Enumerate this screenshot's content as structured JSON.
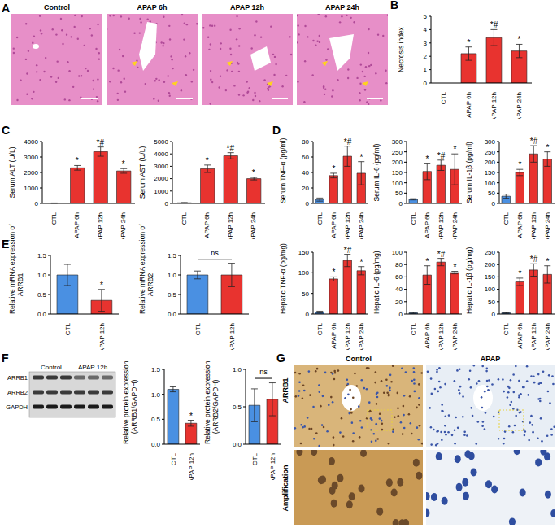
{
  "histology": {
    "panel": "A",
    "labels": [
      "Control",
      "APAP 6h",
      "APAP 12h",
      "APAP 24h"
    ]
  },
  "blot": {
    "panel": "F",
    "groups": [
      "Control",
      "APAP 12h"
    ],
    "rows": [
      "ARRB1",
      "ARRB2",
      "GAPDH"
    ]
  },
  "ihc": {
    "panel": "G",
    "stain": "ARRB1",
    "labels": [
      "Control",
      "APAP"
    ],
    "zoom_label": "Amplification"
  },
  "chart_data": [
    {
      "panel": "B",
      "type": "bar",
      "y_label": "Necrosis index",
      "categories": [
        "CTL",
        "APAP 6h",
        "APAP 12h",
        "APAP 24h"
      ],
      "values": [
        0,
        2.2,
        3.4,
        2.4
      ],
      "errors": [
        0,
        0.5,
        0.6,
        0.5
      ],
      "colors": [
        "#4a90e2",
        "#e8332f",
        "#e8332f",
        "#e8332f"
      ],
      "ylim": [
        0,
        5
      ],
      "yticks": [
        0,
        1,
        2,
        3,
        4,
        5
      ],
      "annotations": [
        {
          "text": "*",
          "category": "APAP 6h"
        },
        {
          "text": "*#",
          "category": "APAP 12h"
        },
        {
          "text": "*",
          "category": "APAP 24h"
        }
      ]
    },
    {
      "panel": "C",
      "type": "bar",
      "y_label": "Serum ALT (U/L)",
      "categories": [
        "CTL",
        "APAP 6h",
        "APAP 12h",
        "APAP 24h"
      ],
      "values": [
        20,
        2300,
        3350,
        2100
      ],
      "errors": [
        10,
        150,
        300,
        150
      ],
      "colors": [
        "#4a90e2",
        "#e8332f",
        "#e8332f",
        "#e8332f"
      ],
      "ylim": [
        0,
        4000
      ],
      "yticks": [
        0,
        1000,
        2000,
        3000,
        4000
      ],
      "annotations": [
        {
          "text": "*",
          "category": "APAP 6h"
        },
        {
          "text": "*#",
          "category": "APAP 12h"
        },
        {
          "text": "*",
          "category": "APAP 24h"
        }
      ]
    },
    {
      "type": "bar",
      "y_label": "Serum AST (U/L)",
      "categories": [
        "CTL",
        "APAP 6h",
        "APAP 12h",
        "APAP 24h"
      ],
      "values": [
        50,
        2800,
        3850,
        2000
      ],
      "errors": [
        20,
        300,
        250,
        100
      ],
      "colors": [
        "#4a90e2",
        "#e8332f",
        "#e8332f",
        "#e8332f"
      ],
      "ylim": [
        0,
        5000
      ],
      "yticks": [
        0,
        1000,
        2000,
        3000,
        4000,
        5000
      ],
      "annotations": [
        {
          "text": "*",
          "category": "APAP 6h"
        },
        {
          "text": "*#",
          "category": "APAP 12h"
        },
        {
          "text": "*",
          "category": "APAP 24h"
        }
      ]
    },
    {
      "panel": "D",
      "type": "bar",
      "y_label": "Serum TNF-α (pg/ml)",
      "categories": [
        "CTL",
        "APAP 6h",
        "APAP 12h",
        "APAP 24h"
      ],
      "values": [
        5,
        36,
        61,
        39
      ],
      "errors": [
        2,
        3,
        13,
        15
      ],
      "colors": [
        "#4a90e2",
        "#e8332f",
        "#e8332f",
        "#e8332f"
      ],
      "ylim": [
        0,
        80
      ],
      "yticks": [
        0,
        20,
        40,
        60,
        80
      ],
      "annotations": [
        {
          "text": "*",
          "category": "APAP 6h"
        },
        {
          "text": "*#",
          "category": "APAP 12h"
        },
        {
          "text": "*",
          "category": "APAP 24h"
        }
      ]
    },
    {
      "type": "bar",
      "y_label": "Serum IL-6 (pg/ml)",
      "categories": [
        "CTL",
        "APAP 6h",
        "APAP 12h",
        "APAP 24h"
      ],
      "values": [
        20,
        155,
        185,
        165
      ],
      "errors": [
        3,
        40,
        25,
        75
      ],
      "colors": [
        "#4a90e2",
        "#e8332f",
        "#e8332f",
        "#e8332f"
      ],
      "ylim": [
        0,
        300
      ],
      "yticks": [
        0,
        50,
        100,
        150,
        200,
        250,
        300
      ],
      "annotations": [
        {
          "text": "*",
          "category": "APAP 6h"
        },
        {
          "text": "*#",
          "category": "APAP 12h"
        },
        {
          "text": "*",
          "category": "APAP 24h"
        }
      ]
    },
    {
      "type": "bar",
      "y_label": "Serum IL-1β (pg/ml)",
      "categories": [
        "CTL",
        "APAP 6h",
        "APAP 12h",
        "APAP 24h"
      ],
      "values": [
        35,
        150,
        240,
        215
      ],
      "errors": [
        10,
        15,
        40,
        35
      ],
      "colors": [
        "#4a90e2",
        "#e8332f",
        "#e8332f",
        "#e8332f"
      ],
      "ylim": [
        0,
        300
      ],
      "yticks": [
        0,
        50,
        100,
        150,
        200,
        250,
        300
      ],
      "annotations": [
        {
          "text": "*",
          "category": "APAP 6h"
        },
        {
          "text": "*#",
          "category": "APAP 12h"
        },
        {
          "text": "*",
          "category": "APAP 24h"
        }
      ]
    },
    {
      "type": "bar",
      "y_label": "Hepatic TNF-α (pg/mg)",
      "categories": [
        "CTL",
        "APAP 6h",
        "APAP 12h",
        "APAP 24h"
      ],
      "values": [
        5,
        85,
        130,
        105
      ],
      "errors": [
        2,
        5,
        15,
        10
      ],
      "colors": [
        "#4a90e2",
        "#e8332f",
        "#e8332f",
        "#e8332f"
      ],
      "ylim": [
        0,
        150
      ],
      "yticks": [
        0,
        50,
        100,
        150
      ],
      "annotations": [
        {
          "text": "*",
          "category": "APAP 6h"
        },
        {
          "text": "*#",
          "category": "APAP 12h"
        },
        {
          "text": "*",
          "category": "APAP 24h"
        }
      ]
    },
    {
      "type": "bar",
      "y_label": "Hepatic IL-6 (pg/mg)",
      "categories": [
        "CTL",
        "APAP 6h",
        "APAP 12h",
        "APAP 24h"
      ],
      "values": [
        2,
        63,
        84,
        67
      ],
      "errors": [
        1,
        15,
        6,
        2
      ],
      "colors": [
        "#4a90e2",
        "#e8332f",
        "#e8332f",
        "#e8332f"
      ],
      "ylim": [
        0,
        100
      ],
      "yticks": [
        0,
        20,
        40,
        60,
        80,
        100
      ],
      "annotations": [
        {
          "text": "*",
          "category": "APAP 6h"
        },
        {
          "text": "*#",
          "category": "APAP 12h"
        },
        {
          "text": "*",
          "category": "APAP 24h"
        }
      ]
    },
    {
      "type": "bar",
      "y_label": "Hepatic IL-1β (pg/mg)",
      "categories": [
        "CTL",
        "APAP 6h",
        "APAP 12h",
        "APAP 24h"
      ],
      "values": [
        5,
        130,
        178,
        160
      ],
      "errors": [
        2,
        15,
        25,
        35
      ],
      "colors": [
        "#4a90e2",
        "#e8332f",
        "#e8332f",
        "#e8332f"
      ],
      "ylim": [
        0,
        250
      ],
      "yticks": [
        0,
        50,
        100,
        150,
        200,
        250
      ],
      "annotations": [
        {
          "text": "*",
          "category": "APAP 6h"
        },
        {
          "text": "*#",
          "category": "APAP 12h"
        },
        {
          "text": "*",
          "category": "APAP 24h"
        }
      ]
    },
    {
      "panel": "E",
      "type": "bar",
      "y_label": [
        "Relative mRNA expression of",
        "ARRB1"
      ],
      "categories": [
        "CTL",
        "APAP 12h"
      ],
      "values": [
        1.0,
        0.35
      ],
      "errors": [
        0.27,
        0.28
      ],
      "colors": [
        "#4a90e2",
        "#e8332f"
      ],
      "ylim": [
        0,
        1.5
      ],
      "yticks": [
        {
          "value": 0,
          "label": "0.0"
        },
        {
          "value": 0.5,
          "label": "0.5"
        },
        {
          "value": 1,
          "label": "1.0"
        },
        {
          "value": 1.5,
          "label": "1.5"
        }
      ],
      "annotations": [
        {
          "text": "*",
          "category": "APAP 12h"
        }
      ]
    },
    {
      "type": "bar",
      "y_label": [
        "Relative mRNA expression of",
        "ARRB2"
      ],
      "categories": [
        "CTL",
        "APAP 12h"
      ],
      "values": [
        1.0,
        1.0
      ],
      "errors": [
        0.1,
        0.3
      ],
      "colors": [
        "#4a90e2",
        "#e8332f"
      ],
      "ylim": [
        0,
        1.5
      ],
      "yticks": [
        {
          "value": 0,
          "label": "0.0"
        },
        {
          "value": 0.5,
          "label": "0.5"
        },
        {
          "value": 1,
          "label": "1.0"
        },
        {
          "value": 1.5,
          "label": "1.5"
        }
      ],
      "annotations": [
        {
          "text": "ns",
          "categories": [
            "CTL",
            "APAP 12h"
          ]
        }
      ]
    },
    {
      "type": "bar",
      "y_label": [
        "Relative protein expression",
        "(ARRB1/GAPDH)"
      ],
      "categories": [
        "CTL",
        "APAP 12h"
      ],
      "values": [
        1.1,
        0.42
      ],
      "errors": [
        0.05,
        0.06
      ],
      "colors": [
        "#4a90e2",
        "#e8332f"
      ],
      "ylim": [
        0,
        1.5
      ],
      "yticks": [
        {
          "value": 0,
          "label": "0.0"
        },
        {
          "value": 0.5,
          "label": "0.5"
        },
        {
          "value": 1,
          "label": "1.0"
        },
        {
          "value": 1.5,
          "label": "1.5"
        }
      ],
      "annotations": [
        {
          "text": "*",
          "category": "APAP 12h"
        }
      ]
    },
    {
      "type": "bar",
      "y_label": [
        "Relative protein expression",
        "(ARRB2/GAPDH)"
      ],
      "categories": [
        "CTL",
        "APAP 12h"
      ],
      "values": [
        0.52,
        0.6
      ],
      "errors": [
        0.22,
        0.22
      ],
      "colors": [
        "#4a90e2",
        "#e8332f"
      ],
      "ylim": [
        0,
        1
      ],
      "yticks": [
        {
          "value": 0,
          "label": "0.0"
        },
        {
          "value": 0.5,
          "label": "0.5"
        },
        {
          "value": 1,
          "label": "1.0"
        }
      ],
      "annotations": [
        {
          "text": "ns",
          "categories": [
            "CTL",
            "APAP 12h"
          ]
        }
      ]
    }
  ]
}
